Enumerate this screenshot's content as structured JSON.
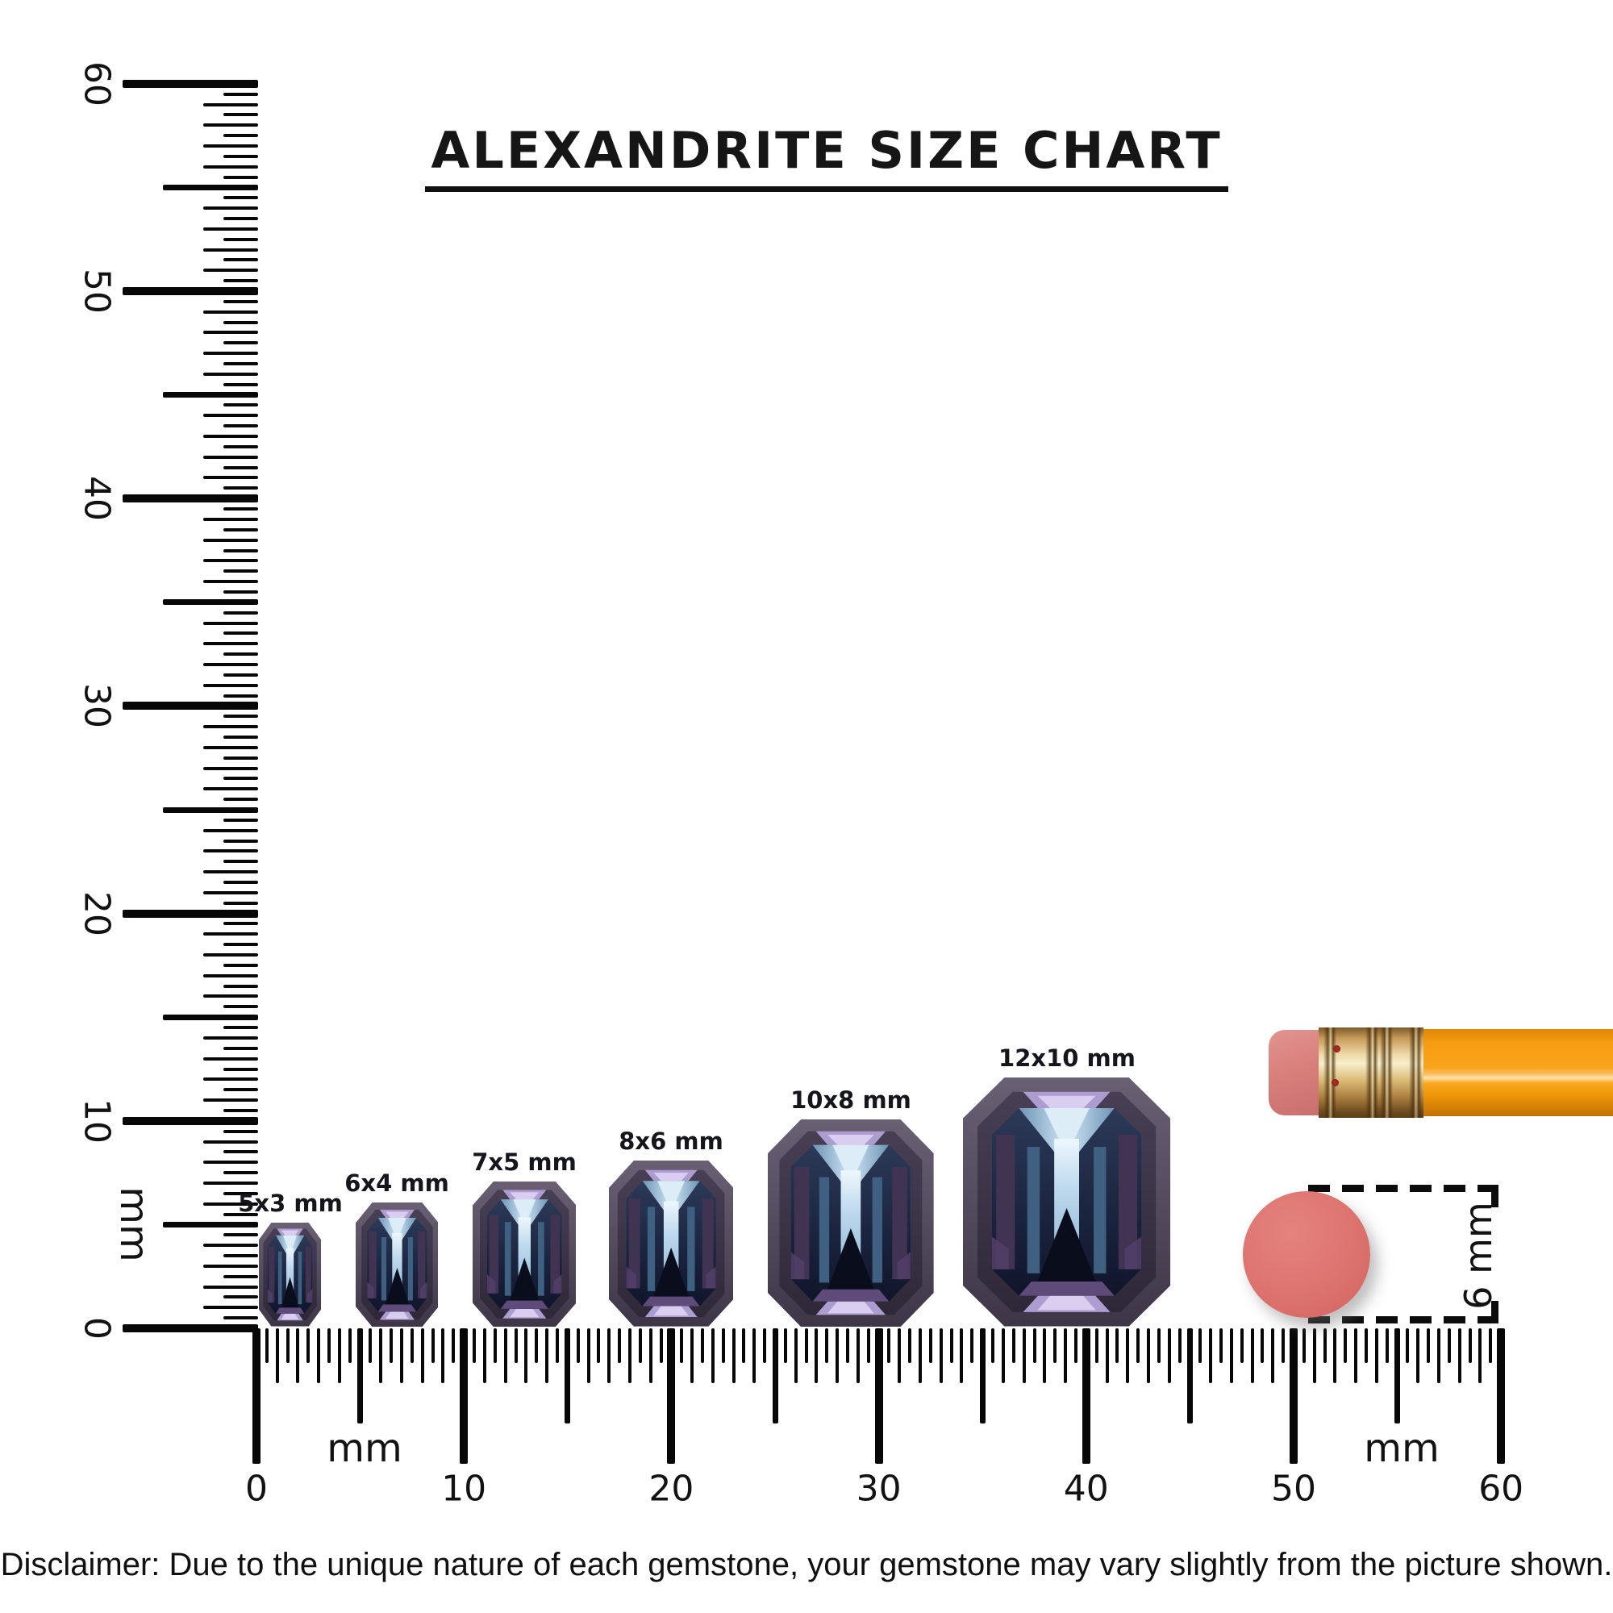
{
  "title": {
    "text": "ALEXANDRITE SIZE CHART"
  },
  "rulers": {
    "unit": "mm",
    "vertical": {
      "tick_labels": [
        0,
        10,
        20,
        30,
        40,
        50,
        60
      ]
    },
    "horizontal": {
      "tick_labels": [
        0,
        10,
        20,
        30,
        40,
        50,
        60
      ]
    }
  },
  "gems": [
    {
      "label": "5x3 mm",
      "width_mm": 3,
      "length_mm": 5
    },
    {
      "label": "6x4 mm",
      "width_mm": 4,
      "length_mm": 6
    },
    {
      "label": "7x5 mm",
      "width_mm": 5,
      "length_mm": 7
    },
    {
      "label": "8x6 mm",
      "width_mm": 6,
      "length_mm": 8
    },
    {
      "label": "10x8 mm",
      "width_mm": 8,
      "length_mm": 10
    },
    {
      "label": "12x10 mm",
      "width_mm": 10,
      "length_mm": 12
    }
  ],
  "measurement_annotation": {
    "label": "6 mm"
  },
  "disclaimer": "Disclaimer: Due to the unique nature of each gemstone, your gemstone may vary slightly from the picture shown.",
  "colors": {
    "gem_rim": "#4e4454",
    "gem_core_navy": "#1b2540",
    "gem_highlight_blue": "#cfe6f5",
    "gem_lavender": "#ad9cd0",
    "eraser_coral": "#dd736f",
    "pencil_orange": "#f8a41b",
    "ferrule_gold": "#dcbc78",
    "ink": "#0c0c0c"
  }
}
